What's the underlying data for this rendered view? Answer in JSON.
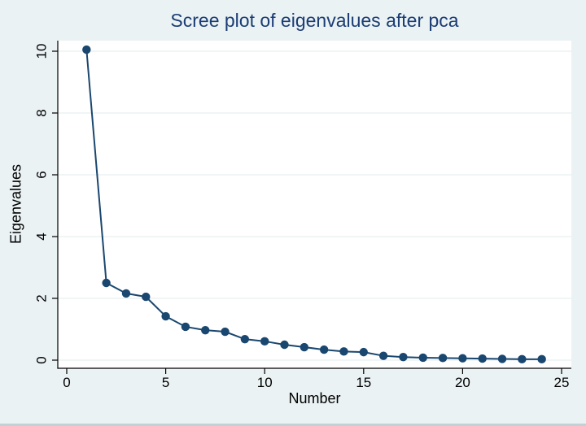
{
  "figure": {
    "title": "Scree plot of eigenvalues after pca",
    "xlabel": "Number",
    "ylabel": "Eigenvalues"
  },
  "colors": {
    "background": "#eaf2f3",
    "plot_background": "#ffffff",
    "series": "#1a476f",
    "grid": "#e6eff0",
    "axis": "#000000",
    "title": "#1b3c74",
    "window_border": "#c2d1d5"
  },
  "chart_data": {
    "type": "line",
    "title": "Scree plot of eigenvalues after pca",
    "xlabel": "Number",
    "ylabel": "Eigenvalues",
    "x": [
      1,
      2,
      3,
      4,
      5,
      6,
      7,
      8,
      9,
      10,
      11,
      12,
      13,
      14,
      15,
      16,
      17,
      18,
      19,
      20,
      21,
      22,
      23,
      24
    ],
    "series": [
      {
        "name": "Eigenvalues",
        "values": [
          10.05,
          2.5,
          2.16,
          2.05,
          1.42,
          1.08,
          0.97,
          0.92,
          0.68,
          0.61,
          0.5,
          0.42,
          0.34,
          0.28,
          0.26,
          0.14,
          0.1,
          0.08,
          0.07,
          0.06,
          0.05,
          0.04,
          0.03,
          0.03
        ]
      }
    ],
    "xlim": [
      0,
      25
    ],
    "ylim": [
      0,
      10
    ],
    "xticks": [
      0,
      5,
      10,
      15,
      20,
      25
    ],
    "yticks": [
      0,
      2,
      4,
      6,
      8,
      10
    ],
    "grid": "horizontal-only",
    "legend": "none",
    "marker": "filled-circle"
  }
}
